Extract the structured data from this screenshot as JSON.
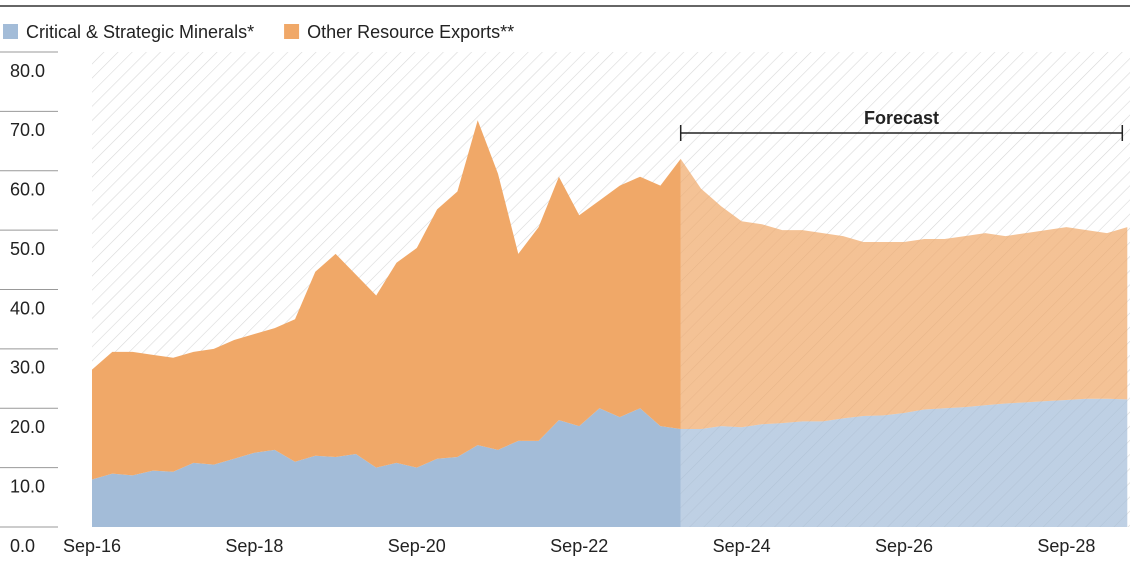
{
  "chart_data": {
    "type": "stacked_area",
    "categories": [
      "Sep-16",
      null,
      null,
      null,
      null,
      null,
      null,
      null,
      "Sep-18",
      null,
      null,
      null,
      null,
      null,
      null,
      null,
      "Sep-20",
      null,
      null,
      null,
      null,
      null,
      null,
      null,
      "Sep-22",
      null,
      null,
      null,
      null,
      null,
      null,
      null,
      "Sep-24",
      null,
      null,
      null,
      null,
      null,
      null,
      null,
      "Sep-26",
      null,
      null,
      null,
      null,
      null,
      null,
      null,
      "Sep-28",
      null,
      null,
      null
    ],
    "series": [
      {
        "name": "Critical & Strategic Minerals*",
        "color": "#a3bcd8",
        "values": [
          8,
          9,
          8.7,
          9.5,
          9.3,
          10.8,
          10.5,
          11.5,
          12.5,
          13,
          11,
          12,
          11.8,
          12.3,
          10,
          10.8,
          10,
          11.5,
          11.8,
          13.8,
          13,
          14.5,
          14.5,
          18,
          17,
          20,
          18.5,
          20,
          17,
          16.5,
          16.5,
          17,
          16.8,
          17.3,
          17.5,
          17.8,
          17.8,
          18.3,
          18.7,
          18.8,
          19.2,
          19.8,
          20,
          20.2,
          20.5,
          20.8,
          21,
          21.2,
          21.4,
          21.6,
          21.6,
          21.5
        ]
      },
      {
        "name": "Other Resource Exports**",
        "color": "#f0a868",
        "values": [
          18.5,
          20.5,
          20.8,
          19.5,
          19.2,
          18.7,
          19.5,
          20,
          20,
          20.5,
          24,
          31,
          34.2,
          30.2,
          29,
          33.7,
          37,
          42,
          44.7,
          54.7,
          46.5,
          31.5,
          36,
          41,
          35.5,
          35,
          39,
          39,
          40.5,
          45.5,
          40.5,
          37,
          34.7,
          33.7,
          32.5,
          32.2,
          31.7,
          30.7,
          29.3,
          29.2,
          28.8,
          28.7,
          28.5,
          28.8,
          29,
          28.2,
          28.5,
          28.8,
          29.1,
          28.4,
          27.9,
          29
        ]
      }
    ],
    "ylim": [
      0,
      80
    ],
    "yticks": [
      {
        "value": 0,
        "label": "0.0"
      },
      {
        "value": 10,
        "label": "10.0"
      },
      {
        "value": 20,
        "label": "20.0"
      },
      {
        "value": 30,
        "label": "30.0"
      },
      {
        "value": 40,
        "label": "40.0"
      },
      {
        "value": 50,
        "label": "50.0"
      },
      {
        "value": 60,
        "label": "60.0"
      },
      {
        "value": 70,
        "label": "70.0"
      },
      {
        "value": 80,
        "label": "80.0"
      }
    ],
    "annotations": [
      {
        "text": "Forecast",
        "start_index": 29
      }
    ]
  }
}
